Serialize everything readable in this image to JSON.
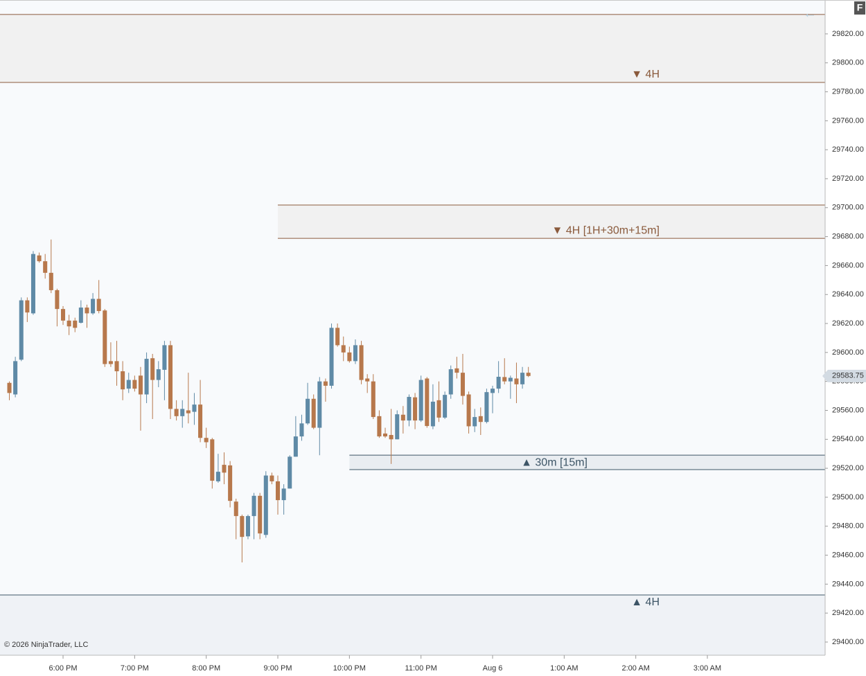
{
  "chart_data": {
    "type": "candlestick",
    "up_color": "#5f8aa6",
    "down_color": "#b7784c",
    "open": [
      29579,
      29571,
      29595,
      29636,
      29627,
      29667,
      29663,
      29655,
      29643,
      29630,
      29622,
      29622,
      29620.5,
      29631,
      29627,
      29637,
      29629,
      29594,
      29594,
      29587,
      29575,
      29581,
      29584,
      29571,
      29596,
      29581,
      29588,
      29605,
      29561,
      29556,
      29560,
      29559,
      29564,
      29541,
      29540,
      29511,
      29522.4,
      29522,
      29497,
      29487,
      29473,
      29487,
      29501,
      29474,
      29515,
      29511,
      29498,
      29506,
      29528,
      29542,
      29551,
      29568,
      29548,
      29580,
      29577,
      29617,
      29605,
      29600,
      29594,
      29605,
      29582,
      29580,
      29556,
      29544,
      29543,
      29540,
      29557,
      29553,
      29569,
      29553,
      29582,
      29549,
      29567,
      29555,
      29571,
      29589,
      29586,
      29571,
      29549,
      29556,
      29552,
      29572,
      29575,
      29583,
      29580,
      29582,
      29578,
      29586
    ],
    "high": [
      29580,
      29597,
      29638,
      29638,
      29670,
      29669,
      29668,
      29678,
      29644,
      29632,
      29626,
      29624,
      29636,
      29633,
      29641,
      29650,
      29630,
      29607,
      29608,
      29594,
      29586,
      29584,
      29590,
      29600,
      29599,
      29594,
      29608,
      29608,
      29567,
      29567,
      29586,
      29572,
      29581,
      29548,
      29541,
      29530,
      29531,
      29525,
      29499,
      29488,
      29488,
      29503,
      29503,
      29518,
      29517,
      29515,
      29509,
      29529,
      29556,
      29557,
      29579,
      29571,
      29583,
      29582,
      29620,
      29620,
      29611,
      29604,
      29609,
      29608,
      29585,
      29585,
      29560,
      29548,
      29561,
      29560,
      29563,
      29571,
      29572,
      29584,
      29583,
      29578,
      29580,
      29573,
      29591,
      29597,
      29599,
      29573,
      29561,
      29562,
      29575,
      29577,
      29594,
      29596,
      29584,
      29593,
      29590,
      29590
    ],
    "low": [
      29567,
      29569,
      29594,
      29621,
      29626,
      29662,
      29651,
      29641,
      29618,
      29619,
      29612,
      29614,
      29620,
      29617,
      29626,
      29627,
      29590,
      29590,
      29577,
      29567,
      29572,
      29573,
      29546,
      29565,
      29554,
      29576,
      29567,
      29554,
      29553,
      29548,
      29551,
      29550,
      29538,
      29534,
      29506,
      29510,
      29509,
      29493,
      29471,
      29455,
      29471,
      29471,
      29471,
      29472,
      29509,
      29488,
      29488,
      29506,
      29528,
      29539,
      29550,
      29547,
      29529,
      29566,
      29575,
      29604,
      29594,
      29593,
      29592,
      29578,
      29572,
      29554,
      29541,
      29541,
      29523,
      29540,
      29544,
      29549,
      29547,
      29552,
      29548,
      29547,
      29552,
      29554,
      29568,
      29582,
      29564,
      29544,
      29545,
      29543,
      29551,
      29558,
      29572,
      29578,
      29568,
      29565,
      29575,
      29583
    ],
    "close": [
      29572,
      29594,
      29636,
      29627.6,
      29668,
      29663,
      29655,
      29643,
      29630,
      29622,
      29618,
      29617,
      29631,
      29627,
      29637,
      29628.6,
      29592,
      29592,
      29587,
      29574.5,
      29581,
      29575,
      29571,
      29595.6,
      29581,
      29588.4,
      29605,
      29561,
      29556,
      29561,
      29558,
      29564,
      29541,
      29538,
      29511.4,
      29517.6,
      29517,
      29497.5,
      29487,
      29472.6,
      29487,
      29501,
      29475,
      29515,
      29511,
      29498,
      29506,
      29528,
      29542,
      29551,
      29568,
      29548,
      29580,
      29577,
      29617,
      29605,
      29600,
      29594,
      29605,
      29581,
      29580,
      29555.4,
      29542,
      29542,
      29540,
      29557.3,
      29553,
      29569.3,
      29553,
      29581,
      29549.2,
      29566,
      29555,
      29570.7,
      29588.4,
      29586,
      29570,
      29549,
      29555.4,
      29552,
      29572.6,
      29575,
      29583.2,
      29580,
      29582.5,
      29578,
      29586,
      29583.75
    ],
    "xlim": [
      -1.57,
      136.74
    ],
    "xticks": [
      {
        "value": 9,
        "label": "6:00 PM"
      },
      {
        "value": 21,
        "label": "7:00 PM"
      },
      {
        "value": 33,
        "label": "8:00 PM"
      },
      {
        "value": 45,
        "label": "9:00 PM"
      },
      {
        "value": 57,
        "label": "10:00 PM"
      },
      {
        "value": 69,
        "label": "11:00 PM"
      },
      {
        "value": 81,
        "label": "Aug 6"
      },
      {
        "value": 93,
        "label": "1:00 AM"
      },
      {
        "value": 105,
        "label": "2:00 AM"
      },
      {
        "value": 117,
        "label": "3:00 AM"
      }
    ],
    "ylim": [
      29390.9,
      29843.4
    ],
    "yticks": [
      {
        "value": 29400,
        "label": "29400.00"
      },
      {
        "value": 29420,
        "label": "29420.00"
      },
      {
        "value": 29440,
        "label": "29440.00"
      },
      {
        "value": 29460,
        "label": "29460.00"
      },
      {
        "value": 29480,
        "label": "29480.00"
      },
      {
        "value": 29500,
        "label": "29500.00"
      },
      {
        "value": 29520,
        "label": "29520.00"
      },
      {
        "value": 29540,
        "label": "29540.00"
      },
      {
        "value": 29560,
        "label": "29560.00"
      },
      {
        "value": 29580,
        "label": "29580.00"
      },
      {
        "value": 29600,
        "label": "29600.00"
      },
      {
        "value": 29620,
        "label": "29620.00"
      },
      {
        "value": 29640,
        "label": "29640.00"
      },
      {
        "value": 29660,
        "label": "29660.00"
      },
      {
        "value": 29680,
        "label": "29680.00"
      },
      {
        "value": 29700,
        "label": "29700.00"
      },
      {
        "value": 29720,
        "label": "29720.00"
      },
      {
        "value": 29740,
        "label": "29740.00"
      },
      {
        "value": 29760,
        "label": "29760.00"
      },
      {
        "value": 29780,
        "label": "29780.00"
      },
      {
        "value": 29800,
        "label": "29800.00"
      },
      {
        "value": 29820,
        "label": "29820.00"
      }
    ],
    "last_price": 29583.75,
    "zones": [
      {
        "label": "▼ 4H",
        "top": 29833.4,
        "bottom": 29786.5,
        "color": "#8a5a3c",
        "fill": "#f1f1f1"
      },
      {
        "label": "▼ 4H [1H+30m+15m]",
        "top": 29701.8,
        "bottom": 29678.8,
        "start": 45,
        "color": "#8a5a3c",
        "fill": "#f1f1f1"
      },
      {
        "label": "▲ 30m [15m]",
        "top": 29529.1,
        "bottom": 29519.1,
        "start": 57,
        "color": "#3d5566",
        "fill": "#e9edf1"
      },
      {
        "label": "▲ 4H",
        "top": 29432.5,
        "color": "#3d5566",
        "fill": "#eff2f6"
      }
    ],
    "copyright": "© 2026 NinjaTrader, LLC",
    "badge": "F",
    "back_arrow": "←"
  }
}
